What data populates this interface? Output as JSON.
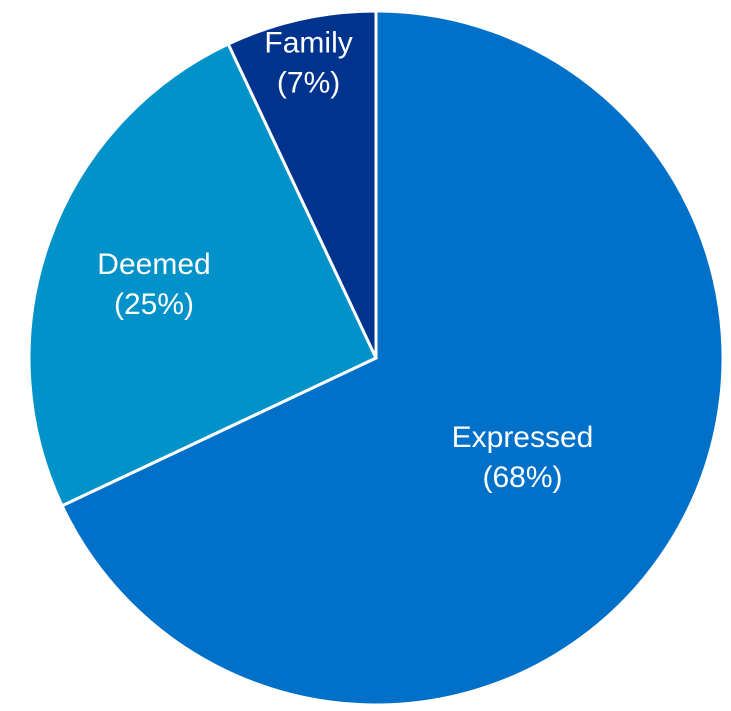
{
  "chart_data": {
    "type": "pie",
    "title": "",
    "categories": [
      "Expressed",
      "Deemed",
      "Family"
    ],
    "values": [
      68,
      25,
      7
    ],
    "value_labels": [
      "(68%)",
      "(25%)",
      "(7%)"
    ],
    "colors": [
      "#0070C8",
      "#0092C9",
      "#00338D"
    ],
    "start": "top",
    "direction": "clockwise",
    "legend": "none"
  }
}
